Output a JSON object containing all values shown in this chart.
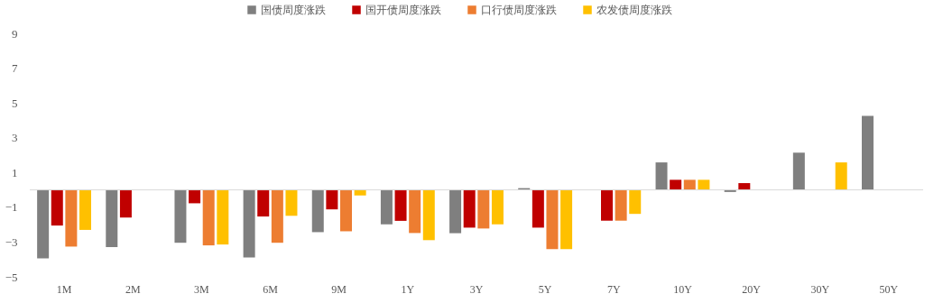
{
  "chart_data": {
    "type": "bar",
    "categories": [
      "1M",
      "2M",
      "3M",
      "6M",
      "9M",
      "1Y",
      "3Y",
      "5Y",
      "7Y",
      "10Y",
      "20Y",
      "30Y",
      "50Y"
    ],
    "series": [
      {
        "name": "国债周度涨跌",
        "color": "#7f7f7f",
        "values": [
          -3.94,
          -3.29,
          -3.04,
          -3.89,
          -2.43,
          -1.98,
          -2.49,
          0.1,
          null,
          1.58,
          -0.12,
          2.14,
          4.26
        ]
      },
      {
        "name": "国开债周度涨跌",
        "color": "#c00000",
        "values": [
          -2.05,
          -1.59,
          -0.77,
          -1.53,
          -1.12,
          -1.78,
          -2.17,
          -2.17,
          -1.77,
          0.58,
          0.39,
          null,
          null
        ]
      },
      {
        "name": "口行债周度涨跌",
        "color": "#ed7d31",
        "values": [
          -3.26,
          null,
          -3.19,
          -3.04,
          -2.38,
          -2.48,
          -2.22,
          -3.4,
          -1.77,
          0.58,
          null,
          null,
          null
        ]
      },
      {
        "name": "农发债周度涨跌",
        "color": "#ffc000",
        "values": [
          -2.3,
          null,
          -3.14,
          -1.49,
          -0.32,
          -2.89,
          -1.98,
          -3.4,
          -1.38,
          0.58,
          null,
          1.58,
          null
        ]
      }
    ],
    "ylim": [
      -5,
      9
    ],
    "yticks": [
      -5,
      -3,
      -1,
      1,
      3,
      5,
      7,
      9
    ],
    "grid": false,
    "legend": "top",
    "ref_lines": [
      {
        "axis": "y",
        "value": 0,
        "color": "#d9d9d9"
      }
    ]
  }
}
